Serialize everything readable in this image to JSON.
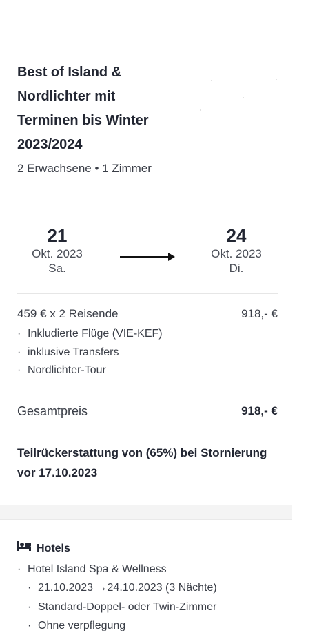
{
  "trip": {
    "title": "Best of Island & Nordlichter mit Terminen bis Winter 2023/2024",
    "guests": "2 Erwachsene • 1 Zimmer"
  },
  "dates": {
    "start": {
      "day": "21",
      "month": "Okt. 2023",
      "weekday": "Sa."
    },
    "end": {
      "day": "24",
      "month": "Okt. 2023",
      "weekday": "Di."
    }
  },
  "pricing": {
    "line_label": "459 € x 2 Reisende",
    "line_amount": "918,- €",
    "inclusions": [
      "Inkludierte Flüge (VIE-KEF)",
      "inklusive Transfers",
      "Nordlichter-Tour"
    ],
    "total_label": "Gesamtpreis",
    "total_amount": "918,- €"
  },
  "refund_notice": "Teilrückerstattung von (65%) bei Stornierung vor 17.10.2023",
  "hotels": {
    "heading": "Hotels",
    "icon": "bed-icon",
    "hotel_name": "Hotel Island Spa & Wellness",
    "details": [
      "21.10.2023 →24.10.2023 (3 Nächte)",
      "Standard-Doppel- oder Twin-Zimmer",
      "Ohne verpflegung"
    ]
  },
  "bullet_char": "·"
}
